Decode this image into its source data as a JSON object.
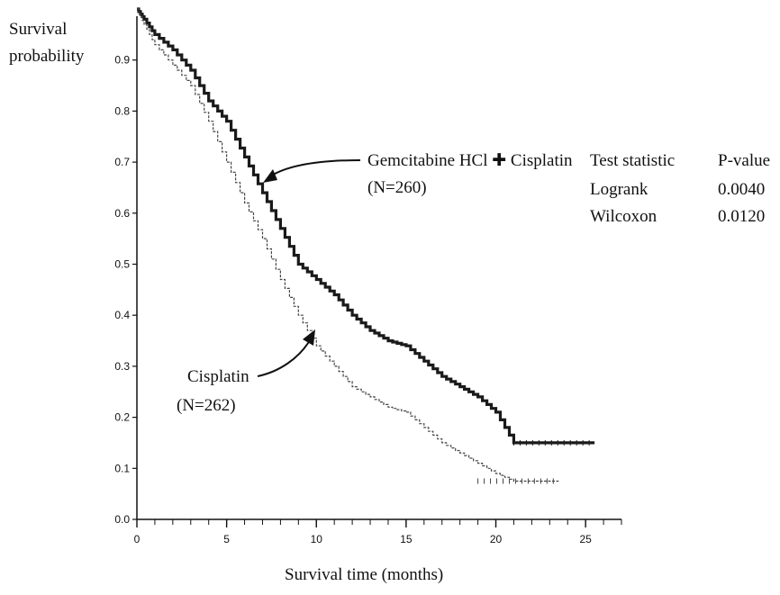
{
  "chart_data": {
    "type": "line",
    "title": "",
    "ylabel_line1": "Survival",
    "ylabel_line2": "probability",
    "xlabel": "Survival time (months)",
    "xlim": [
      0,
      27
    ],
    "ylim": [
      0,
      1.0
    ],
    "x_ticks": [
      0,
      5,
      10,
      15,
      20,
      25
    ],
    "x_minor_step": 1,
    "y_ticks": [
      0.0,
      0.1,
      0.2,
      0.3,
      0.4,
      0.5,
      0.6,
      0.7,
      0.8,
      0.9
    ],
    "y_tick_labels": [
      "0.0",
      "0.1",
      "0.2",
      "0.3",
      "0.4",
      "0.5",
      "0.6",
      "0.7",
      "0.8",
      "0.9"
    ],
    "grid": false,
    "series": [
      {
        "name_line1": "Gemcitabine HCl ✚ Cisplatin",
        "name_line2": "(N=260)",
        "color": "#1a1a1a",
        "x": [
          0,
          0.4,
          1.0,
          2.0,
          3.0,
          4.0,
          5.0,
          6.0,
          7.0,
          8.0,
          9.0,
          10.0,
          11.0,
          12.0,
          13.0,
          14.0,
          15.0,
          16.0,
          17.0,
          18.0,
          19.0,
          20.0,
          21.0,
          22.0,
          23.0,
          24.0,
          25.5
        ],
        "y": [
          1.0,
          0.98,
          0.95,
          0.92,
          0.88,
          0.82,
          0.78,
          0.71,
          0.64,
          0.57,
          0.5,
          0.47,
          0.44,
          0.4,
          0.37,
          0.35,
          0.34,
          0.31,
          0.28,
          0.26,
          0.24,
          0.21,
          0.15,
          0.15,
          0.15,
          0.15,
          0.15
        ]
      },
      {
        "name_line1": "Cisplatin",
        "name_line2": "(N=262)",
        "color": "#444444",
        "x": [
          0,
          0.4,
          1.0,
          2.0,
          3.0,
          4.0,
          5.0,
          6.0,
          7.0,
          8.0,
          9.0,
          10.0,
          11.0,
          12.0,
          13.0,
          14.0,
          15.0,
          16.0,
          17.0,
          18.0,
          19.0,
          20.0,
          21.0,
          22.0,
          23.5
        ],
        "y": [
          1.0,
          0.97,
          0.93,
          0.89,
          0.85,
          0.78,
          0.7,
          0.62,
          0.55,
          0.47,
          0.4,
          0.34,
          0.3,
          0.26,
          0.24,
          0.22,
          0.21,
          0.18,
          0.15,
          0.13,
          0.11,
          0.09,
          0.075,
          0.075,
          0.075
        ]
      }
    ],
    "stats_table": {
      "headers": [
        "Test statistic",
        "P-value"
      ],
      "rows": [
        [
          "Logrank",
          "0.0040"
        ],
        [
          "Wilcoxon",
          "0.0120"
        ]
      ]
    }
  }
}
